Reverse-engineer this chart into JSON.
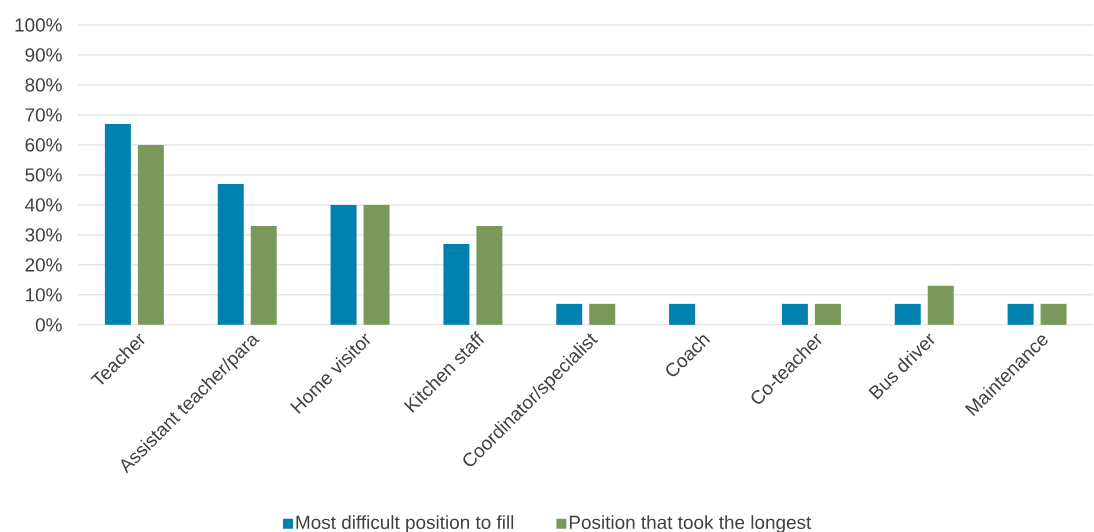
{
  "chart_data": {
    "type": "bar",
    "categories": [
      "Teacher",
      "Assistant teacher/para",
      "Home visitor",
      "Kitchen staff",
      "Coordinator/specialist",
      "Coach",
      "Co-teacher",
      "Bus driver",
      "Maintenance"
    ],
    "series": [
      {
        "name": "Most difficult position to fill",
        "color": "#0081ae",
        "values": [
          67,
          47,
          40,
          27,
          7,
          7,
          7,
          7,
          7
        ]
      },
      {
        "name": "Position that took the longest",
        "color": "#7b985b",
        "values": [
          60,
          33,
          40,
          33,
          7,
          0,
          7,
          13,
          7
        ]
      }
    ],
    "ylim": [
      0,
      100
    ],
    "yticks": [
      {
        "value": 0,
        "label": "0%"
      },
      {
        "value": 10,
        "label": "10%"
      },
      {
        "value": 20,
        "label": "20%"
      },
      {
        "value": 30,
        "label": "30%"
      },
      {
        "value": 40,
        "label": "40%"
      },
      {
        "value": 50,
        "label": "50%"
      },
      {
        "value": 60,
        "label": "60%"
      },
      {
        "value": 70,
        "label": "70%"
      },
      {
        "value": 80,
        "label": "80%"
      },
      {
        "value": 90,
        "label": "90%"
      },
      {
        "value": 100,
        "label": "100%"
      }
    ],
    "grid": "y",
    "legend": "bottom"
  }
}
